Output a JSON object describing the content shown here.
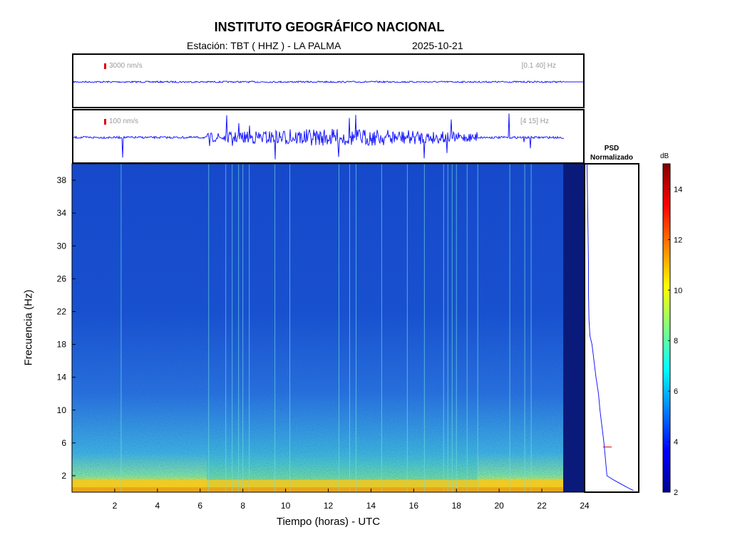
{
  "header": {
    "title": "INSTITUTO GEOGRÁFICO NACIONAL",
    "station": "Estación:  TBT ( HHZ ) - LA PALMA",
    "date": "2025-10-21"
  },
  "traces": [
    {
      "scale_label": "3000 nm/s",
      "band_label": "[0.1 40] Hz",
      "scale_color": "#e00000",
      "trace_color": "#1a1aff"
    },
    {
      "scale_label": "100 nm/s",
      "band_label": "[4 15] Hz",
      "scale_color": "#e00000",
      "trace_color": "#1a1aff"
    }
  ],
  "chart_data": {
    "type": "heatmap",
    "title": "",
    "xlabel": "Tiempo (horas) - UTC",
    "ylabel": "Frecuencia  (Hz)",
    "xlim": [
      0,
      24
    ],
    "ylim": [
      0,
      40
    ],
    "x_ticks": [
      2,
      4,
      6,
      8,
      10,
      12,
      14,
      16,
      18,
      20,
      22,
      24
    ],
    "y_ticks": [
      2,
      6,
      10,
      14,
      18,
      22,
      26,
      30,
      34,
      38
    ],
    "data_end_hour": 23,
    "background_level_db": 4,
    "low_frequency_band": {
      "freq_max_hz": 1.5,
      "level_db": 10
    },
    "spectral_lines_hours": [
      2.3,
      6.4,
      7.2,
      7.5,
      7.8,
      8.0,
      8.3,
      9.5,
      10.2,
      12.5,
      13.0,
      13.3,
      14.5,
      15.7,
      16.5,
      17.4,
      17.6,
      17.8,
      18.0,
      18.5,
      19.0,
      20.5,
      21.2,
      21.5
    ],
    "psd": {
      "title": "PSD Normalizado",
      "line_color": "#1a1aff",
      "freq": [
        40,
        36,
        32,
        28,
        24,
        21,
        19,
        18,
        16,
        14,
        12,
        10,
        8,
        6,
        4,
        2,
        1.5,
        1,
        0.5,
        0.2
      ],
      "value": [
        0.02,
        0.03,
        0.04,
        0.05,
        0.05,
        0.06,
        0.08,
        0.12,
        0.16,
        0.2,
        0.25,
        0.28,
        0.32,
        0.36,
        0.39,
        0.42,
        0.55,
        0.7,
        0.85,
        0.95
      ]
    },
    "colorbar": {
      "unit": "dB",
      "min": 2,
      "max": 15,
      "ticks": [
        2,
        4,
        6,
        8,
        10,
        12,
        14
      ],
      "colormap": "jet"
    }
  }
}
